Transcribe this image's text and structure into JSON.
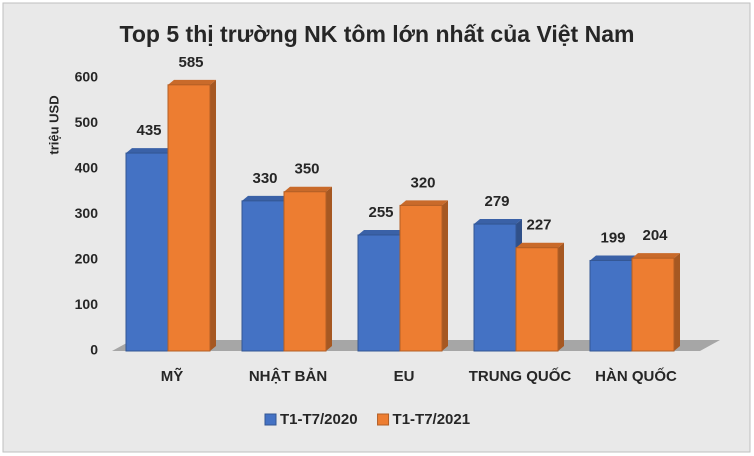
{
  "chart_data": {
    "type": "bar3d",
    "title": "Top 5 thị trường NK tôm lớn nhất của Việt Nam",
    "y_label": "triệu USD",
    "categories": [
      "MỸ",
      "NHẬT BẢN",
      "EU",
      "TRUNG QUỐC",
      "HÀN QUỐC"
    ],
    "series": [
      {
        "name": "T1-T7/2020",
        "color": "#4472c4",
        "values": [
          435,
          330,
          255,
          279,
          199
        ]
      },
      {
        "name": "T1-T7/2021",
        "color": "#ed7d31",
        "values": [
          585,
          350,
          320,
          227,
          204
        ]
      }
    ],
    "ylim": [
      0,
      600
    ],
    "yticks": [
      0,
      100,
      200,
      300,
      400,
      500,
      600
    ],
    "grid": false
  }
}
